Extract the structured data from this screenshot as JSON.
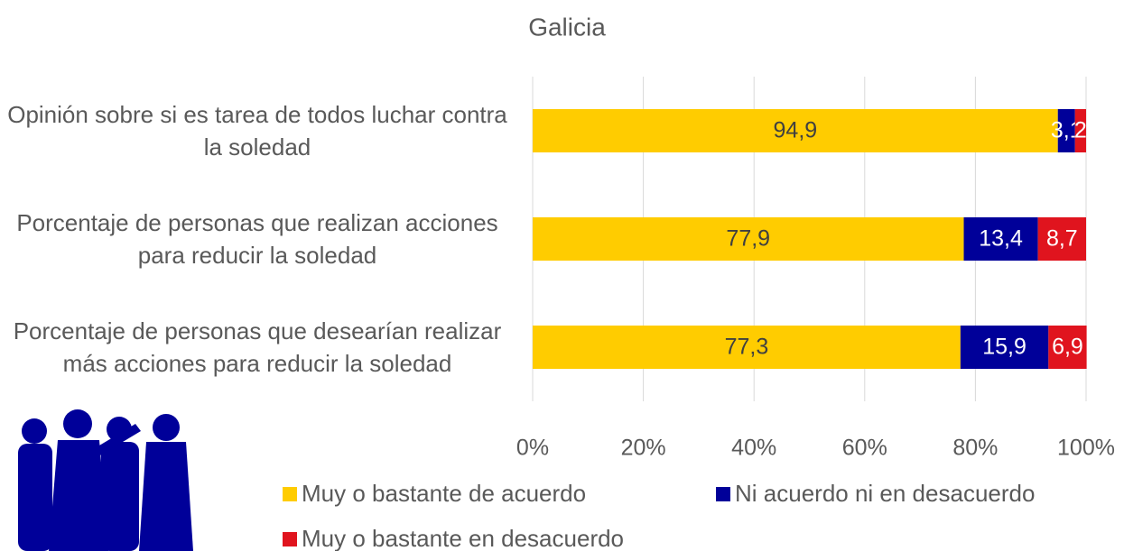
{
  "chart_data": {
    "type": "stacked-bar-horizontal",
    "title": "Galicia",
    "categories": [
      "Opinión sobre si es tarea de todos luchar contra la soledad",
      "Porcentaje de personas que realizan acciones para reducir la soledad",
      "Porcentaje de personas que desearían realizar más acciones para reducir la soledad"
    ],
    "series": [
      {
        "name": "Muy o bastante de acuerdo",
        "color": "#ffcc00",
        "values": [
          94.9,
          77.9,
          77.3
        ],
        "value_labels": [
          "94,9",
          "77,9",
          "77,3"
        ]
      },
      {
        "name": "Ni acuerdo ni en desacuerdo",
        "color": "#000099",
        "values": [
          3.1,
          13.4,
          15.9
        ],
        "value_labels": [
          "3,1",
          "13,4",
          "15,9"
        ]
      },
      {
        "name": "Muy o bastante en desacuerdo",
        "color": "#e0141e",
        "values": [
          2,
          8.7,
          6.9
        ],
        "value_labels": [
          "2",
          "8,7",
          "6,9"
        ]
      }
    ],
    "xlim": [
      0,
      100
    ],
    "xticks": [
      {
        "value": 0,
        "label": "0%"
      },
      {
        "value": 20,
        "label": "20%"
      },
      {
        "value": 40,
        "label": "40%"
      },
      {
        "value": 60,
        "label": "60%"
      },
      {
        "value": 80,
        "label": "80%"
      },
      {
        "value": 100,
        "label": "100%"
      }
    ],
    "grid": true,
    "legend": "bottom"
  }
}
